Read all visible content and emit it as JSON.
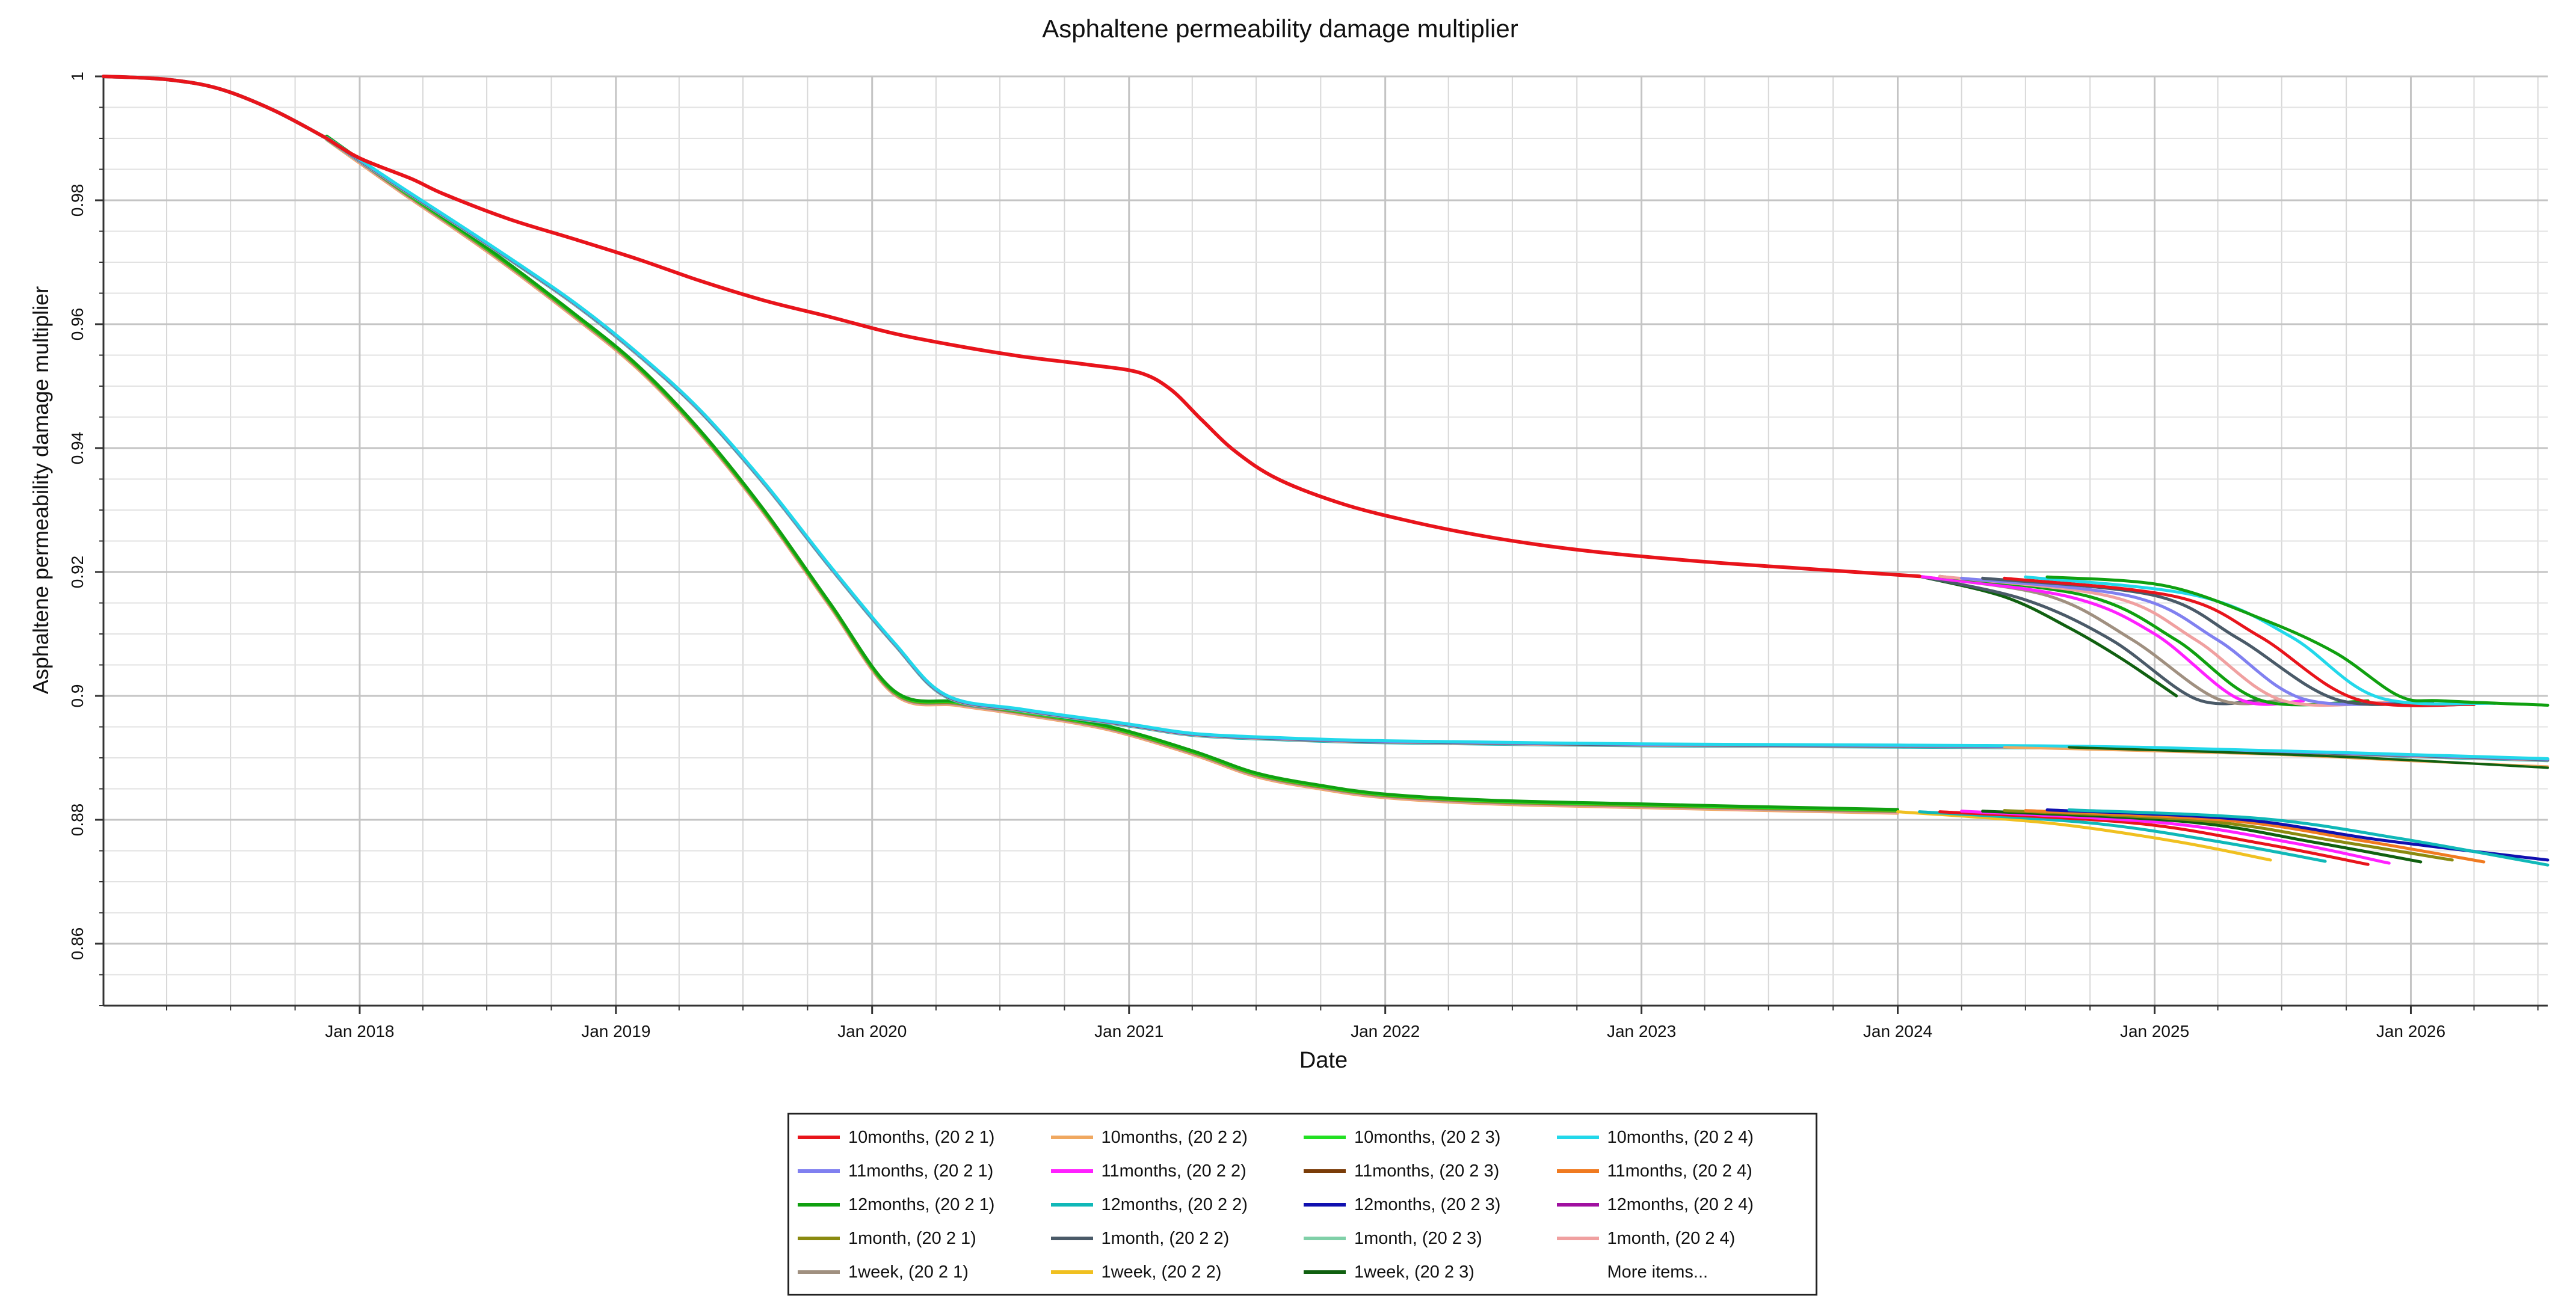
{
  "chart_data": {
    "type": "line",
    "title": "Asphaltene permeability damage multiplier",
    "xlabel": "Date",
    "ylabel": "Asphaltene permeability damage multiplier",
    "xlim": [
      "2017-01-01",
      "2026-07-15"
    ],
    "ylim": [
      0.85,
      1.0
    ],
    "x_ticks": [
      "Jan 2018",
      "Jan 2019",
      "Jan 2020",
      "Jan 2021",
      "Jan 2022",
      "Jan 2023",
      "Jan 2024",
      "Jan 2025",
      "Jan 2026"
    ],
    "y_ticks": [
      "1",
      "0.98",
      "0.96",
      "0.94",
      "0.92",
      "0.9",
      "0.88",
      "0.86"
    ],
    "grid": true,
    "legend_position": "bottom",
    "legend_more": "More items...",
    "series": [
      {
        "name": "10months, (20 2 1)",
        "color": "#e8141b"
      },
      {
        "name": "10months, (20 2 2)",
        "color": "#f0a860"
      },
      {
        "name": "10months, (20 2 3)",
        "color": "#22e022"
      },
      {
        "name": "10months, (20 2 4)",
        "color": "#22d8ea"
      },
      {
        "name": "11months, (20 2 1)",
        "color": "#8080f0"
      },
      {
        "name": "11months, (20 2 2)",
        "color": "#ff20ff"
      },
      {
        "name": "11months, (20 2 3)",
        "color": "#7a3c08"
      },
      {
        "name": "11months, (20 2 4)",
        "color": "#f07a20"
      },
      {
        "name": "12months, (20 2 1)",
        "color": "#10a010"
      },
      {
        "name": "12months, (20 2 2)",
        "color": "#10b8b8"
      },
      {
        "name": "12months, (20 2 3)",
        "color": "#1010b0"
      },
      {
        "name": "12months, (20 2 4)",
        "color": "#a010a0"
      },
      {
        "name": "1month, (20 2 1)",
        "color": "#8a8a10"
      },
      {
        "name": "1month, (20 2 2)",
        "color": "#4a5a68"
      },
      {
        "name": "1month, (20 2 3)",
        "color": "#80d0a8"
      },
      {
        "name": "1month, (20 2 4)",
        "color": "#f0a0a0"
      },
      {
        "name": "1week, (20 2 1)",
        "color": "#a09080"
      },
      {
        "name": "1week, (20 2 2)",
        "color": "#f0c020"
      },
      {
        "name": "1week, (20 2 3)",
        "color": "#106010"
      }
    ],
    "curves": {
      "common_start": [
        [
          "2017-01-01",
          1.0
        ],
        [
          "2017-04-01",
          0.9995
        ],
        [
          "2017-06-15",
          0.998
        ],
        [
          "2017-09-01",
          0.9945
        ],
        [
          "2017-11-15",
          0.99
        ]
      ],
      "group_a_base": [
        [
          "2017-11-15",
          0.99
        ],
        [
          "2018-01-01",
          0.9868
        ],
        [
          "2018-03-15",
          0.9835
        ],
        [
          "2018-05-01",
          0.981
        ],
        [
          "2018-08-01",
          0.977
        ],
        [
          "2018-11-01",
          0.9738
        ],
        [
          "2019-02-01",
          0.9705
        ],
        [
          "2019-05-01",
          0.967
        ],
        [
          "2019-08-01",
          0.9638
        ],
        [
          "2019-11-01",
          0.9612
        ],
        [
          "2020-02-01",
          0.9585
        ],
        [
          "2020-05-01",
          0.9565
        ],
        [
          "2020-08-01",
          0.9548
        ],
        [
          "2020-11-01",
          0.9535
        ],
        [
          "2021-01-15",
          0.9522
        ],
        [
          "2021-03-01",
          0.9495
        ],
        [
          "2021-04-15",
          0.9445
        ],
        [
          "2021-06-01",
          0.9395
        ],
        [
          "2021-08-01",
          0.935
        ],
        [
          "2021-11-01",
          0.931
        ],
        [
          "2022-02-01",
          0.9283
        ],
        [
          "2022-05-01",
          0.9262
        ],
        [
          "2022-08-01",
          0.9245
        ],
        [
          "2022-11-01",
          0.9232
        ],
        [
          "2023-02-01",
          0.9222
        ],
        [
          "2023-05-01",
          0.9214
        ],
        [
          "2023-08-01",
          0.9207
        ],
        [
          "2023-11-01",
          0.92
        ],
        [
          "2024-02-01",
          0.9193
        ]
      ],
      "group_a_tails": [
        {
          "color": "#106010",
          "points": [
            [
              "2024-02-01",
              0.9193
            ],
            [
              "2024-06-01",
              0.916
            ],
            [
              "2024-09-01",
              0.911
            ],
            [
              "2024-11-15",
              0.906
            ],
            [
              "2025-02-01",
              0.9
            ]
          ]
        },
        {
          "color": "#4a5a68",
          "points": [
            [
              "2024-02-01",
              0.9193
            ],
            [
              "2024-07-01",
              0.9155
            ],
            [
              "2024-11-01",
              0.909
            ],
            [
              "2025-03-01",
              0.8995
            ],
            [
              "2025-06-01",
              0.8993
            ]
          ]
        },
        {
          "color": "#a09080",
          "points": [
            [
              "2024-02-01",
              0.9193
            ],
            [
              "2024-08-01",
              0.9162
            ],
            [
              "2024-12-01",
              0.909
            ],
            [
              "2025-04-01",
              0.8995
            ],
            [
              "2025-07-01",
              0.8993
            ]
          ]
        },
        {
          "color": "#ff20ff",
          "points": [
            [
              "2024-02-01",
              0.9193
            ],
            [
              "2024-09-01",
              0.916
            ],
            [
              "2025-01-01",
              0.91
            ],
            [
              "2025-05-01",
              0.8995
            ],
            [
              "2025-08-01",
              0.8992
            ]
          ]
        },
        {
          "color": "#10a010",
          "points": [
            [
              "2024-03-01",
              0.9193
            ],
            [
              "2024-10-01",
              0.916
            ],
            [
              "2025-02-01",
              0.909
            ],
            [
              "2025-06-01",
              0.8993
            ],
            [
              "2025-11-01",
              0.8992
            ]
          ]
        },
        {
          "color": "#f0a0a0",
          "points": [
            [
              "2024-03-01",
              0.9193
            ],
            [
              "2024-11-01",
              0.916
            ],
            [
              "2025-03-01",
              0.909
            ],
            [
              "2025-07-01",
              0.8993
            ],
            [
              "2025-12-01",
              0.899
            ]
          ]
        },
        {
          "color": "#8080f0",
          "points": [
            [
              "2024-04-01",
              0.919
            ],
            [
              "2024-12-01",
              0.916
            ],
            [
              "2025-04-01",
              0.909
            ],
            [
              "2025-08-01",
              0.8995
            ],
            [
              "2026-01-15",
              0.899
            ]
          ]
        },
        {
          "color": "#4a5a68",
          "points": [
            [
              "2024-05-01",
              0.919
            ],
            [
              "2025-01-01",
              0.9162
            ],
            [
              "2025-05-01",
              0.9092
            ],
            [
              "2025-09-15",
              0.8995
            ],
            [
              "2026-02-01",
              0.899
            ]
          ]
        },
        {
          "color": "#e8141b",
          "points": [
            [
              "2024-06-01",
              0.919
            ],
            [
              "2025-02-01",
              0.916
            ],
            [
              "2025-06-01",
              0.9095
            ],
            [
              "2025-10-15",
              0.8995
            ],
            [
              "2026-04-01",
              0.8986
            ]
          ]
        },
        {
          "color": "#22d8ea",
          "points": [
            [
              "2024-07-01",
              0.9192
            ],
            [
              "2025-03-01",
              0.9162
            ],
            [
              "2025-07-15",
              0.9095
            ],
            [
              "2025-11-15",
              0.8998
            ],
            [
              "2026-05-01",
              0.8988
            ]
          ]
        },
        {
          "color": "#10a010",
          "points": [
            [
              "2024-08-01",
              0.9192
            ],
            [
              "2025-01-15",
              0.9178
            ],
            [
              "2025-06-01",
              0.9125
            ],
            [
              "2025-09-15",
              0.907
            ],
            [
              "2025-12-15",
              0.9
            ],
            [
              "2026-02-15",
              0.8992
            ],
            [
              "2026-07-15",
              0.8985
            ]
          ]
        }
      ],
      "group_b_base": [
        [
          "2017-11-15",
          0.99
        ],
        [
          "2018-03-01",
          0.982
        ],
        [
          "2018-07-01",
          0.973
        ],
        [
          "2018-11-01",
          0.9635
        ],
        [
          "2019-02-01",
          0.9552
        ],
        [
          "2019-05-01",
          0.946
        ],
        [
          "2019-08-01",
          0.9342
        ],
        [
          "2019-11-01",
          0.921
        ],
        [
          "2020-02-01",
          0.9085
        ],
        [
          "2020-04-15",
          0.9
        ],
        [
          "2020-08-01",
          0.8977
        ],
        [
          "2021-01-01",
          0.8953
        ],
        [
          "2021-04-01",
          0.8938
        ],
        [
          "2021-08-01",
          0.8931
        ],
        [
          "2022-01-01",
          0.8926
        ],
        [
          "2023-01-01",
          0.8921
        ],
        [
          "2024-01-01",
          0.8919
        ],
        [
          "2025-01-01",
          0.8915
        ],
        [
          "2026-07-15",
          0.8897
        ]
      ],
      "group_c_base": [
        [
          "2017-11-15",
          0.99
        ],
        [
          "2018-03-01",
          0.9815
        ],
        [
          "2018-07-01",
          0.972
        ],
        [
          "2018-11-01",
          0.9615
        ],
        [
          "2019-02-01",
          0.953
        ],
        [
          "2019-05-01",
          0.9425
        ],
        [
          "2019-08-01",
          0.9295
        ],
        [
          "2019-11-01",
          0.9148
        ],
        [
          "2020-02-01",
          0.9005
        ],
        [
          "2020-05-01",
          0.8987
        ],
        [
          "2020-08-01",
          0.8972
        ],
        [
          "2020-12-01",
          0.8948
        ],
        [
          "2021-04-01",
          0.8908
        ],
        [
          "2021-07-01",
          0.8872
        ],
        [
          "2021-10-01",
          0.8852
        ],
        [
          "2022-01-01",
          0.8838
        ],
        [
          "2022-06-01",
          0.8828
        ],
        [
          "2023-01-01",
          0.8822
        ],
        [
          "2023-06-01",
          0.8818
        ],
        [
          "2024-01-01",
          0.8813
        ]
      ],
      "group_c_tails": [
        {
          "color": "#f0c020",
          "points": [
            [
              "2024-01-01",
              0.8813
            ],
            [
              "2024-08-01",
              0.8795
            ],
            [
              "2025-02-01",
              0.8765
            ],
            [
              "2025-06-15",
              0.8735
            ]
          ]
        },
        {
          "color": "#10b8b8",
          "points": [
            [
              "2024-02-01",
              0.8813
            ],
            [
              "2024-10-01",
              0.8795
            ],
            [
              "2025-04-01",
              0.8765
            ],
            [
              "2025-09-01",
              0.8733
            ]
          ]
        },
        {
          "color": "#e8141b",
          "points": [
            [
              "2024-03-01",
              0.8813
            ],
            [
              "2024-12-01",
              0.8795
            ],
            [
              "2025-06-01",
              0.8762
            ],
            [
              "2025-11-01",
              0.8728
            ]
          ]
        },
        {
          "color": "#ff20ff",
          "points": [
            [
              "2024-04-01",
              0.8814
            ],
            [
              "2025-01-15",
              0.8795
            ],
            [
              "2025-07-15",
              0.8763
            ],
            [
              "2025-12-01",
              0.873
            ]
          ]
        },
        {
          "color": "#106010",
          "points": [
            [
              "2024-05-01",
              0.8814
            ],
            [
              "2025-02-15",
              0.8797
            ],
            [
              "2025-08-15",
              0.8764
            ],
            [
              "2026-01-15",
              0.8732
            ]
          ]
        },
        {
          "color": "#8a8a10",
          "points": [
            [
              "2024-06-01",
              0.8815
            ],
            [
              "2025-03-15",
              0.8798
            ],
            [
              "2025-09-15",
              0.8766
            ],
            [
              "2026-03-01",
              0.8735
            ]
          ]
        },
        {
          "color": "#f07a20",
          "points": [
            [
              "2024-07-01",
              0.8815
            ],
            [
              "2025-04-15",
              0.8799
            ],
            [
              "2025-10-15",
              0.8768
            ],
            [
              "2026-04-15",
              0.8732
            ]
          ]
        },
        {
          "color": "#1010b0",
          "points": [
            [
              "2024-08-01",
              0.8816
            ],
            [
              "2025-05-01",
              0.8801
            ],
            [
              "2025-11-15",
              0.8768
            ],
            [
              "2026-07-15",
              0.8735
            ]
          ]
        },
        {
          "color": "#10b8b8",
          "points": [
            [
              "2024-09-01",
              0.8816
            ],
            [
              "2025-06-01",
              0.8802
            ],
            [
              "2025-12-15",
              0.877
            ],
            [
              "2026-07-15",
              0.8727
            ]
          ]
        }
      ]
    }
  }
}
